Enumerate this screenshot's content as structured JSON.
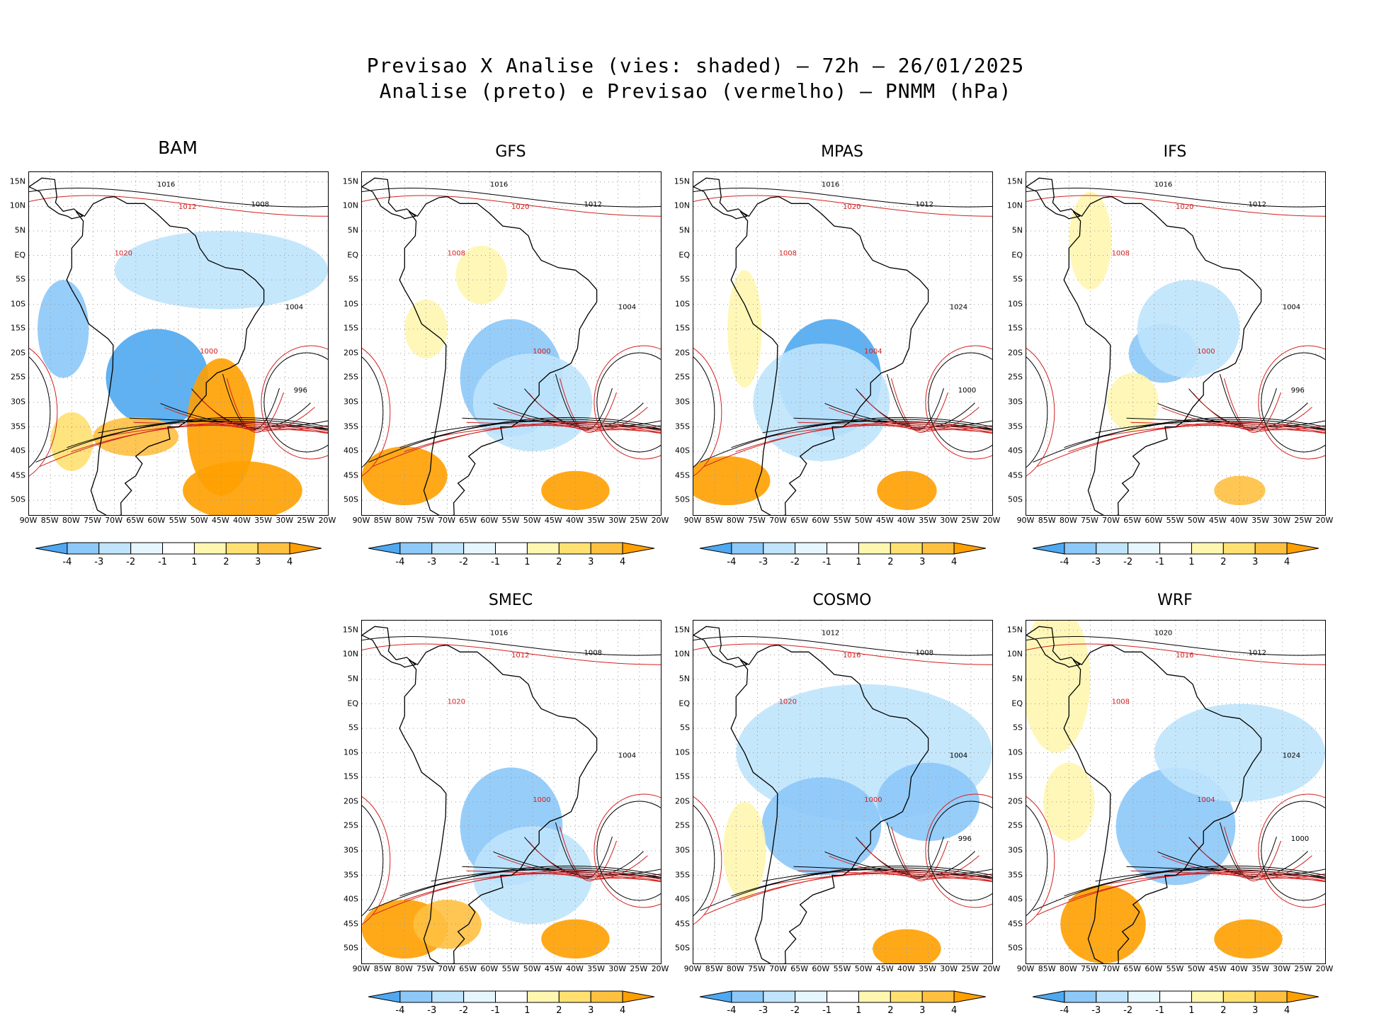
{
  "header": {
    "line1": "Previsao X Analise (vies: shaded) – 72h – 26/01/2025",
    "line2": "Analise (preto) e Previsao (vermelho) – PNMM (hPa)"
  },
  "axes": {
    "lat_labels": [
      "15N",
      "10N",
      "5N",
      "EQ",
      "5S",
      "10S",
      "15S",
      "20S",
      "25S",
      "30S",
      "35S",
      "40S",
      "45S",
      "50S"
    ],
    "lon_labels": [
      "90W",
      "85W",
      "80W",
      "75W",
      "70W",
      "65W",
      "60W",
      "55W",
      "50W",
      "45W",
      "40W",
      "35W",
      "30W",
      "25W",
      "20W"
    ]
  },
  "colorbar": {
    "labels": [
      "-4",
      "-3",
      "-2",
      "-1",
      "1",
      "2",
      "3",
      "4"
    ],
    "colors": [
      "#4fa8f0",
      "#8cc8f8",
      "#bfe4fc",
      "#e6f6ff",
      "#ffffff",
      "#fff6b0",
      "#ffe070",
      "#ffc040",
      "#ffa000"
    ]
  },
  "legend": {
    "analysis_color": "#000000",
    "forecast_color": "#d22020"
  },
  "panels": [
    {
      "id": "bam",
      "name": "BAM",
      "isobars": [
        "1016",
        "1012",
        "1008",
        "1020",
        "1004",
        "1000",
        "996"
      ]
    },
    {
      "id": "gfs",
      "name": "GFS",
      "isobars": [
        "1016",
        "1020",
        "1012",
        "1008",
        "1004",
        "1000"
      ]
    },
    {
      "id": "mpas",
      "name": "MPAS",
      "isobars": [
        "1016",
        "1020",
        "1012",
        "1008",
        "1024",
        "1004",
        "1000"
      ]
    },
    {
      "id": "ifs",
      "name": "IFS",
      "isobars": [
        "1016",
        "1020",
        "1012",
        "1008",
        "1004",
        "1000",
        "996"
      ]
    },
    {
      "id": "smec",
      "name": "SMEC",
      "isobars": [
        "1016",
        "1012",
        "1008",
        "1020",
        "1004",
        "1000"
      ]
    },
    {
      "id": "cosmo",
      "name": "COSMO",
      "isobars": [
        "1012",
        "1016",
        "1008",
        "1020",
        "1004",
        "1000",
        "996"
      ]
    },
    {
      "id": "wrf",
      "name": "WRF",
      "isobars": [
        "1020",
        "1016",
        "1012",
        "1008",
        "1024",
        "1004",
        "1000"
      ]
    }
  ]
}
